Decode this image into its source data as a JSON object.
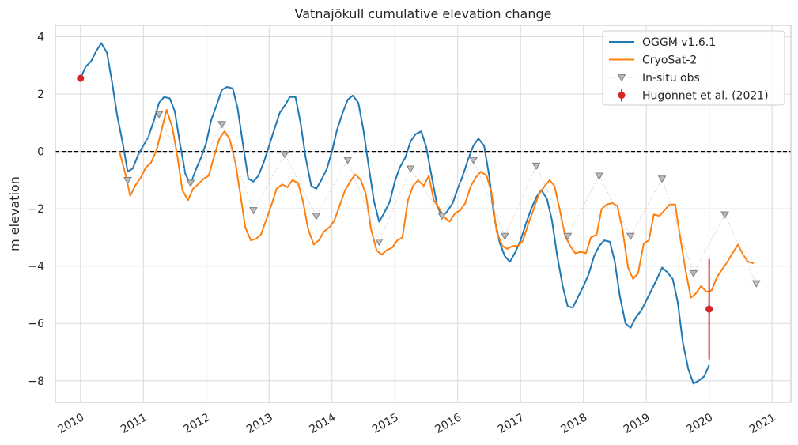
{
  "chart_data": {
    "type": "line",
    "title": "Vatnajökull cumulative elevation change",
    "xlabel": "",
    "ylabel": "m elevation",
    "xlim": [
      2009.6,
      2021.3
    ],
    "ylim": [
      -8.75,
      4.4
    ],
    "grid": true,
    "legend_position": "top-right",
    "x_ticks": [
      2010,
      2011,
      2012,
      2013,
      2014,
      2015,
      2016,
      2017,
      2018,
      2019,
      2020,
      2021
    ],
    "x_tick_labels": [
      "2010",
      "2011",
      "2012",
      "2013",
      "2014",
      "2015",
      "2016",
      "2017",
      "2018",
      "2019",
      "2020",
      "2021"
    ],
    "y_ticks": [
      -8,
      -6,
      -4,
      -2,
      0,
      2,
      4
    ],
    "y_tick_labels": [
      "−8",
      "−6",
      "−4",
      "−2",
      "0",
      "2",
      "4"
    ],
    "reference_line": {
      "y": 0,
      "style": "dashed",
      "color": "#000000"
    },
    "series": [
      {
        "name": "OGGM v1.6.1",
        "kind": "line",
        "color": "#1f77b4",
        "x": [
          2010.0,
          2010.08,
          2010.17,
          2010.25,
          2010.33,
          2010.42,
          2010.5,
          2010.58,
          2010.67,
          2010.75,
          2010.83,
          2010.92,
          2011.0,
          2011.08,
          2011.17,
          2011.25,
          2011.33,
          2011.42,
          2011.5,
          2011.58,
          2011.67,
          2011.75,
          2011.83,
          2011.92,
          2012.0,
          2012.08,
          2012.17,
          2012.25,
          2012.33,
          2012.42,
          2012.5,
          2012.58,
          2012.67,
          2012.75,
          2012.83,
          2012.92,
          2013.0,
          2013.08,
          2013.17,
          2013.25,
          2013.33,
          2013.42,
          2013.5,
          2013.58,
          2013.67,
          2013.75,
          2013.83,
          2013.92,
          2014.0,
          2014.08,
          2014.17,
          2014.25,
          2014.33,
          2014.42,
          2014.5,
          2014.58,
          2014.67,
          2014.75,
          2014.83,
          2014.92,
          2015.0,
          2015.08,
          2015.17,
          2015.25,
          2015.33,
          2015.42,
          2015.5,
          2015.58,
          2015.67,
          2015.75,
          2015.83,
          2015.92,
          2016.0,
          2016.08,
          2016.17,
          2016.25,
          2016.33,
          2016.42,
          2016.5,
          2016.58,
          2016.67,
          2016.75,
          2016.83,
          2016.92,
          2017.0,
          2017.08,
          2017.17,
          2017.25,
          2017.33,
          2017.42,
          2017.5,
          2017.58,
          2017.67,
          2017.75,
          2017.83,
          2017.92,
          2018.0,
          2018.08,
          2018.17,
          2018.25,
          2018.33,
          2018.42,
          2018.5,
          2018.58,
          2018.67,
          2018.75,
          2018.83,
          2018.92,
          2019.0,
          2019.08,
          2019.17,
          2019.25,
          2019.33,
          2019.42,
          2019.5,
          2019.58,
          2019.67,
          2019.75,
          2019.83,
          2019.92,
          2020.0
        ],
        "y": [
          2.55,
          2.95,
          3.15,
          3.5,
          3.78,
          3.45,
          2.45,
          1.3,
          0.3,
          -0.7,
          -0.6,
          -0.1,
          0.2,
          0.5,
          1.1,
          1.7,
          1.9,
          1.85,
          1.4,
          0.3,
          -0.8,
          -1.15,
          -0.65,
          -0.2,
          0.3,
          1.1,
          1.65,
          2.15,
          2.25,
          2.2,
          1.5,
          0.3,
          -0.95,
          -1.05,
          -0.85,
          -0.35,
          0.2,
          0.75,
          1.35,
          1.6,
          1.9,
          1.9,
          1.0,
          -0.2,
          -1.2,
          -1.3,
          -1.0,
          -0.6,
          0.0,
          0.75,
          1.35,
          1.8,
          1.95,
          1.7,
          0.75,
          -0.45,
          -1.75,
          -2.45,
          -2.15,
          -1.75,
          -1.05,
          -0.55,
          -0.2,
          0.35,
          0.6,
          0.7,
          0.15,
          -0.8,
          -1.85,
          -2.3,
          -2.1,
          -1.8,
          -1.3,
          -0.85,
          -0.25,
          0.2,
          0.45,
          0.2,
          -0.85,
          -2.3,
          -3.2,
          -3.65,
          -3.85,
          -3.5,
          -3.1,
          -2.55,
          -2.0,
          -1.6,
          -1.35,
          -1.65,
          -2.4,
          -3.6,
          -4.7,
          -5.4,
          -5.45,
          -5.05,
          -4.7,
          -4.3,
          -3.65,
          -3.3,
          -3.1,
          -3.15,
          -3.85,
          -5.05,
          -6.0,
          -6.15,
          -5.8,
          -5.55,
          -5.2,
          -4.85,
          -4.45,
          -4.05,
          -4.2,
          -4.45,
          -5.25,
          -6.65,
          -7.6,
          -8.1,
          -8.0,
          -7.85,
          -7.45
        ]
      },
      {
        "name": "CryoSat-2",
        "kind": "line",
        "color": "#ff7f0e",
        "x": [
          2010.62,
          2010.71,
          2010.79,
          2010.87,
          2010.96,
          2011.04,
          2011.12,
          2011.21,
          2011.29,
          2011.37,
          2011.46,
          2011.54,
          2011.62,
          2011.71,
          2011.79,
          2011.87,
          2011.96,
          2012.04,
          2012.12,
          2012.21,
          2012.29,
          2012.37,
          2012.46,
          2012.54,
          2012.62,
          2012.71,
          2012.79,
          2012.87,
          2012.96,
          2013.04,
          2013.12,
          2013.21,
          2013.29,
          2013.37,
          2013.46,
          2013.54,
          2013.62,
          2013.71,
          2013.79,
          2013.87,
          2013.96,
          2014.04,
          2014.12,
          2014.21,
          2014.29,
          2014.37,
          2014.46,
          2014.54,
          2014.62,
          2014.71,
          2014.79,
          2014.87,
          2014.96,
          2015.04,
          2015.12,
          2015.21,
          2015.29,
          2015.37,
          2015.46,
          2015.54,
          2015.62,
          2015.71,
          2015.79,
          2015.87,
          2015.96,
          2016.04,
          2016.12,
          2016.21,
          2016.29,
          2016.37,
          2016.46,
          2016.54,
          2016.62,
          2016.71,
          2016.79,
          2016.87,
          2016.96,
          2017.04,
          2017.12,
          2017.21,
          2017.29,
          2017.37,
          2017.46,
          2017.54,
          2017.62,
          2017.71,
          2017.79,
          2017.87,
          2017.96,
          2018.04,
          2018.12,
          2018.21,
          2018.29,
          2018.37,
          2018.46,
          2018.54,
          2018.62,
          2018.71,
          2018.79,
          2018.87,
          2018.96,
          2019.04,
          2019.12,
          2019.21,
          2019.29,
          2019.37,
          2019.46,
          2019.54,
          2019.62,
          2019.71,
          2019.79,
          2019.87,
          2019.96,
          2020.04,
          2020.12,
          2020.21,
          2020.29,
          2020.37,
          2020.46,
          2020.54,
          2020.62,
          2020.71
        ],
        "y": [
          0.0,
          -0.75,
          -1.55,
          -1.2,
          -0.9,
          -0.55,
          -0.4,
          0.05,
          0.75,
          1.45,
          0.85,
          -0.15,
          -1.35,
          -1.7,
          -1.3,
          -1.15,
          -0.95,
          -0.85,
          -0.2,
          0.45,
          0.7,
          0.45,
          -0.35,
          -1.45,
          -2.65,
          -3.1,
          -3.05,
          -2.9,
          -2.35,
          -1.85,
          -1.3,
          -1.15,
          -1.25,
          -1.0,
          -1.1,
          -1.75,
          -2.7,
          -3.25,
          -3.1,
          -2.8,
          -2.65,
          -2.4,
          -1.9,
          -1.35,
          -1.05,
          -0.8,
          -1.0,
          -1.5,
          -2.7,
          -3.45,
          -3.6,
          -3.45,
          -3.35,
          -3.1,
          -3.0,
          -1.7,
          -1.2,
          -1.0,
          -1.2,
          -0.85,
          -1.7,
          -2.0,
          -2.3,
          -2.45,
          -2.15,
          -2.05,
          -1.8,
          -1.2,
          -0.9,
          -0.7,
          -0.85,
          -1.45,
          -2.8,
          -3.3,
          -3.4,
          -3.3,
          -3.3,
          -3.1,
          -2.55,
          -2.0,
          -1.5,
          -1.25,
          -1.0,
          -1.2,
          -2.0,
          -2.95,
          -3.3,
          -3.55,
          -3.5,
          -3.55,
          -3.0,
          -2.9,
          -2.0,
          -1.85,
          -1.8,
          -1.9,
          -2.7,
          -4.05,
          -4.45,
          -4.25,
          -3.2,
          -3.1,
          -2.2,
          -2.25,
          -2.05,
          -1.85,
          -1.85,
          -3.0,
          -4.1,
          -5.1,
          -4.95,
          -4.7,
          -4.9,
          -4.85,
          -4.4,
          -4.1,
          -3.85,
          -3.55,
          -3.25,
          -3.6,
          -3.85,
          -3.9
        ]
      },
      {
        "name": "In-situ obs",
        "kind": "markers_dotted",
        "color": "#8c8c8c",
        "x": [
          2010.75,
          2011.25,
          2011.75,
          2012.25,
          2012.75,
          2013.25,
          2013.75,
          2014.25,
          2014.75,
          2015.25,
          2015.75,
          2016.25,
          2016.75,
          2017.25,
          2017.75,
          2018.25,
          2018.75,
          2019.25,
          2019.75,
          2020.25,
          2020.75
        ],
        "y": [
          -1.0,
          1.3,
          -1.1,
          0.95,
          -2.05,
          -0.1,
          -2.25,
          -0.3,
          -3.15,
          -0.6,
          -2.25,
          -0.3,
          -2.95,
          -0.5,
          -2.95,
          -0.85,
          -2.95,
          -0.95,
          -4.25,
          -2.2,
          -4.6
        ]
      },
      {
        "name": "Hugonnet et al. (2021)",
        "kind": "errorbar",
        "color": "#d62728",
        "x": [
          2010.0,
          2020.0
        ],
        "y": [
          2.55,
          -5.5
        ],
        "yerr": [
          0.0,
          1.75
        ]
      }
    ]
  }
}
